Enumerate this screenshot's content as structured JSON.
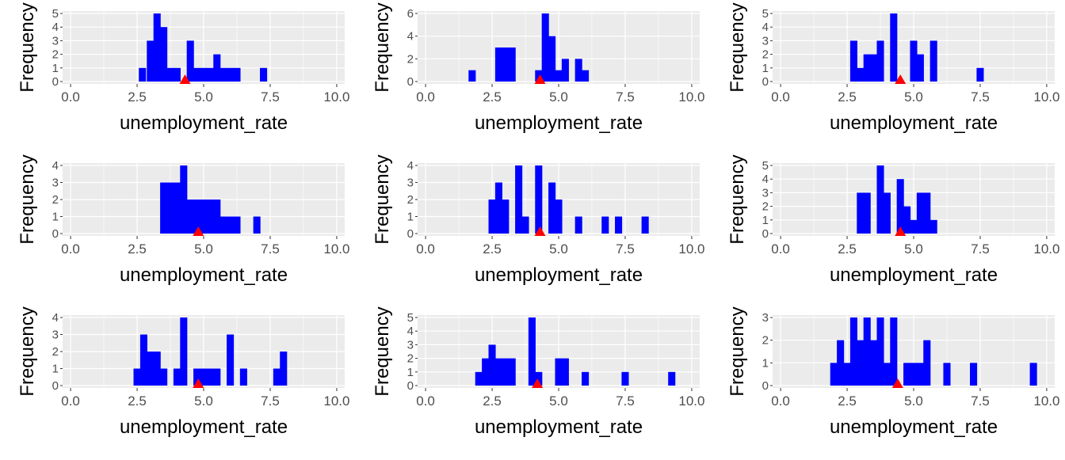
{
  "panel_background": "#ebebeb",
  "gridline_color": "#ffffff",
  "bar_color": "#0000ff",
  "marker_color": "#ff0000",
  "chart_data": [
    {
      "type": "bar",
      "xlabel": "unemployment_rate",
      "ylabel": "Frequency",
      "xlim": [
        -0.3,
        10.3
      ],
      "ylim": [
        0,
        5
      ],
      "y_ticks": [
        0,
        1,
        2,
        3,
        4,
        5
      ],
      "x_ticks": [
        "0.0",
        "2.5",
        "5.0",
        "7.5",
        "10.0"
      ],
      "bin_width": 0.27,
      "bars": [
        {
          "x": 2.7,
          "count": 1
        },
        {
          "x": 3.0,
          "count": 3
        },
        {
          "x": 3.25,
          "count": 5
        },
        {
          "x": 3.5,
          "count": 4
        },
        {
          "x": 3.75,
          "count": 1
        },
        {
          "x": 4.0,
          "count": 1
        },
        {
          "x": 4.5,
          "count": 3
        },
        {
          "x": 4.75,
          "count": 1
        },
        {
          "x": 5.0,
          "count": 1
        },
        {
          "x": 5.25,
          "count": 1
        },
        {
          "x": 5.5,
          "count": 2
        },
        {
          "x": 5.75,
          "count": 1
        },
        {
          "x": 6.0,
          "count": 1
        },
        {
          "x": 6.25,
          "count": 1
        },
        {
          "x": 7.25,
          "count": 1
        }
      ],
      "mean_marker": 4.3
    },
    {
      "type": "bar",
      "xlabel": "unemployment_rate",
      "ylabel": "Frequency",
      "xlim": [
        -0.3,
        10.3
      ],
      "ylim": [
        0,
        6
      ],
      "y_ticks": [
        0,
        2,
        4,
        6
      ],
      "x_ticks": [
        "0.0",
        "2.5",
        "5.0",
        "7.5",
        "10.0"
      ],
      "bin_width": 0.27,
      "bars": [
        {
          "x": 1.75,
          "count": 1
        },
        {
          "x": 2.75,
          "count": 3
        },
        {
          "x": 3.0,
          "count": 3
        },
        {
          "x": 3.25,
          "count": 3
        },
        {
          "x": 4.25,
          "count": 1
        },
        {
          "x": 4.5,
          "count": 6
        },
        {
          "x": 4.75,
          "count": 4
        },
        {
          "x": 5.0,
          "count": 1
        },
        {
          "x": 5.25,
          "count": 2
        },
        {
          "x": 5.75,
          "count": 2
        },
        {
          "x": 6.0,
          "count": 1
        }
      ],
      "mean_marker": 4.3
    },
    {
      "type": "bar",
      "xlabel": "unemployment_rate",
      "ylabel": "Frequency",
      "xlim": [
        -0.3,
        10.3
      ],
      "ylim": [
        0,
        5
      ],
      "y_ticks": [
        0,
        1,
        2,
        3,
        4,
        5
      ],
      "x_ticks": [
        "0.0",
        "2.5",
        "5.0",
        "7.5",
        "10.0"
      ],
      "bin_width": 0.27,
      "bars": [
        {
          "x": 2.75,
          "count": 3
        },
        {
          "x": 3.0,
          "count": 1
        },
        {
          "x": 3.25,
          "count": 2
        },
        {
          "x": 3.5,
          "count": 2
        },
        {
          "x": 3.75,
          "count": 3
        },
        {
          "x": 4.25,
          "count": 5
        },
        {
          "x": 5.0,
          "count": 3
        },
        {
          "x": 5.25,
          "count": 2
        },
        {
          "x": 5.75,
          "count": 3
        },
        {
          "x": 7.5,
          "count": 1
        }
      ],
      "mean_marker": 4.5
    },
    {
      "type": "bar",
      "xlabel": "unemployment_rate",
      "ylabel": "Frequency",
      "xlim": [
        -0.3,
        10.3
      ],
      "ylim": [
        0,
        4
      ],
      "y_ticks": [
        0,
        1,
        2,
        3,
        4
      ],
      "x_ticks": [
        "0.0",
        "2.5",
        "5.0",
        "7.5",
        "10.0"
      ],
      "bin_width": 0.27,
      "bars": [
        {
          "x": 3.5,
          "count": 3
        },
        {
          "x": 3.75,
          "count": 3
        },
        {
          "x": 4.0,
          "count": 3
        },
        {
          "x": 4.25,
          "count": 4
        },
        {
          "x": 4.5,
          "count": 2
        },
        {
          "x": 4.75,
          "count": 2
        },
        {
          "x": 5.0,
          "count": 2
        },
        {
          "x": 5.25,
          "count": 2
        },
        {
          "x": 5.5,
          "count": 2
        },
        {
          "x": 5.75,
          "count": 1
        },
        {
          "x": 6.0,
          "count": 1
        },
        {
          "x": 6.25,
          "count": 1
        },
        {
          "x": 7.0,
          "count": 1
        }
      ],
      "mean_marker": 4.8
    },
    {
      "type": "bar",
      "xlabel": "unemployment_rate",
      "ylabel": "Frequency",
      "xlim": [
        -0.3,
        10.3
      ],
      "ylim": [
        0,
        4
      ],
      "y_ticks": [
        0,
        1,
        2,
        3,
        4
      ],
      "x_ticks": [
        "0.0",
        "2.5",
        "5.0",
        "7.5",
        "10.0"
      ],
      "bin_width": 0.27,
      "bars": [
        {
          "x": 2.5,
          "count": 2
        },
        {
          "x": 2.75,
          "count": 3
        },
        {
          "x": 3.0,
          "count": 2
        },
        {
          "x": 3.5,
          "count": 4
        },
        {
          "x": 3.75,
          "count": 1
        },
        {
          "x": 4.25,
          "count": 4
        },
        {
          "x": 4.75,
          "count": 3
        },
        {
          "x": 5.0,
          "count": 2
        },
        {
          "x": 5.75,
          "count": 1
        },
        {
          "x": 6.75,
          "count": 1
        },
        {
          "x": 7.25,
          "count": 1
        },
        {
          "x": 8.25,
          "count": 1
        }
      ],
      "mean_marker": 4.3
    },
    {
      "type": "bar",
      "xlabel": "unemployment_rate",
      "ylabel": "Frequency",
      "xlim": [
        -0.3,
        10.3
      ],
      "ylim": [
        0,
        5
      ],
      "y_ticks": [
        0,
        1,
        2,
        3,
        4,
        5
      ],
      "x_ticks": [
        "0.0",
        "2.5",
        "5.0",
        "7.5",
        "10.0"
      ],
      "bin_width": 0.27,
      "bars": [
        {
          "x": 3.0,
          "count": 3
        },
        {
          "x": 3.25,
          "count": 3
        },
        {
          "x": 3.75,
          "count": 5
        },
        {
          "x": 4.0,
          "count": 3
        },
        {
          "x": 4.5,
          "count": 4
        },
        {
          "x": 4.75,
          "count": 2
        },
        {
          "x": 5.0,
          "count": 1
        },
        {
          "x": 5.25,
          "count": 3
        },
        {
          "x": 5.5,
          "count": 3
        },
        {
          "x": 5.75,
          "count": 1
        }
      ],
      "mean_marker": 4.5
    },
    {
      "type": "bar",
      "xlabel": "unemployment_rate",
      "ylabel": "Frequency",
      "xlim": [
        -0.3,
        10.3
      ],
      "ylim": [
        0,
        4
      ],
      "y_ticks": [
        0,
        1,
        2,
        3,
        4
      ],
      "x_ticks": [
        "0.0",
        "2.5",
        "5.0",
        "7.5",
        "10.0"
      ],
      "bin_width": 0.27,
      "bars": [
        {
          "x": 2.5,
          "count": 1
        },
        {
          "x": 2.75,
          "count": 3
        },
        {
          "x": 3.0,
          "count": 2
        },
        {
          "x": 3.25,
          "count": 2
        },
        {
          "x": 3.5,
          "count": 1
        },
        {
          "x": 4.0,
          "count": 1
        },
        {
          "x": 4.25,
          "count": 4
        },
        {
          "x": 4.75,
          "count": 1
        },
        {
          "x": 5.0,
          "count": 1
        },
        {
          "x": 5.25,
          "count": 1
        },
        {
          "x": 5.5,
          "count": 1
        },
        {
          "x": 6.0,
          "count": 3
        },
        {
          "x": 6.5,
          "count": 1
        },
        {
          "x": 7.75,
          "count": 1
        },
        {
          "x": 8.0,
          "count": 2
        }
      ],
      "mean_marker": 4.8
    },
    {
      "type": "bar",
      "xlabel": "unemployment_rate",
      "ylabel": "Frequency",
      "xlim": [
        -0.3,
        10.3
      ],
      "ylim": [
        0,
        5
      ],
      "y_ticks": [
        0,
        1,
        2,
        3,
        4,
        5
      ],
      "x_ticks": [
        "0.0",
        "2.5",
        "5.0",
        "7.5",
        "10.0"
      ],
      "bin_width": 0.27,
      "bars": [
        {
          "x": 2.0,
          "count": 1
        },
        {
          "x": 2.25,
          "count": 2
        },
        {
          "x": 2.5,
          "count": 3
        },
        {
          "x": 2.75,
          "count": 2
        },
        {
          "x": 3.0,
          "count": 2
        },
        {
          "x": 3.25,
          "count": 2
        },
        {
          "x": 4.0,
          "count": 5
        },
        {
          "x": 4.25,
          "count": 1
        },
        {
          "x": 5.0,
          "count": 2
        },
        {
          "x": 5.25,
          "count": 2
        },
        {
          "x": 6.0,
          "count": 1
        },
        {
          "x": 7.5,
          "count": 1
        },
        {
          "x": 9.25,
          "count": 1
        }
      ],
      "mean_marker": 4.2
    },
    {
      "type": "bar",
      "xlabel": "unemployment_rate",
      "ylabel": "Frequency",
      "xlim": [
        -0.3,
        10.3
      ],
      "ylim": [
        0,
        3
      ],
      "y_ticks": [
        0,
        1,
        2,
        3
      ],
      "x_ticks": [
        "0.0",
        "2.5",
        "5.0",
        "7.5",
        "10.0"
      ],
      "bin_width": 0.27,
      "bars": [
        {
          "x": 2.0,
          "count": 1
        },
        {
          "x": 2.25,
          "count": 2
        },
        {
          "x": 2.5,
          "count": 1
        },
        {
          "x": 2.75,
          "count": 3
        },
        {
          "x": 3.0,
          "count": 2
        },
        {
          "x": 3.25,
          "count": 3
        },
        {
          "x": 3.5,
          "count": 2
        },
        {
          "x": 3.75,
          "count": 3
        },
        {
          "x": 4.0,
          "count": 1
        },
        {
          "x": 4.25,
          "count": 3
        },
        {
          "x": 4.75,
          "count": 1
        },
        {
          "x": 5.0,
          "count": 1
        },
        {
          "x": 5.25,
          "count": 1
        },
        {
          "x": 5.5,
          "count": 2
        },
        {
          "x": 6.25,
          "count": 1
        },
        {
          "x": 7.25,
          "count": 1
        },
        {
          "x": 9.5,
          "count": 1
        }
      ],
      "mean_marker": 4.4
    }
  ]
}
